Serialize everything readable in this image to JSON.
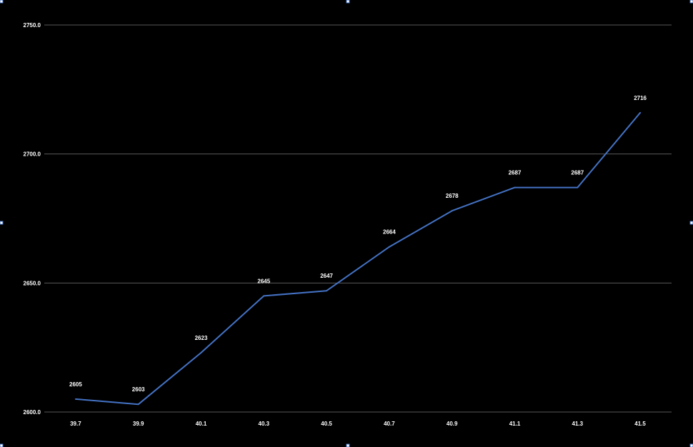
{
  "chart_data": {
    "type": "line",
    "title": "",
    "xlabel": "",
    "ylabel": "",
    "x": [
      "39.7",
      "39.9",
      "40.1",
      "40.3",
      "40.5",
      "40.7",
      "40.9",
      "41.1",
      "41.3",
      "41.5"
    ],
    "series": [
      {
        "values": [
          2605,
          2603,
          2623,
          2645,
          2647,
          2664,
          2678,
          2687,
          2687,
          2716
        ],
        "color": "#4472c4"
      }
    ],
    "y_ticks": [
      "2600.0",
      "2650.0",
      "2700.0",
      "2750.0"
    ],
    "ylim": [
      2600,
      2750
    ],
    "grid": true,
    "legend": "none",
    "colors": {
      "background": "#000000",
      "gridline": "#595959",
      "text": "#ffffff",
      "line": "#4472c4"
    }
  }
}
